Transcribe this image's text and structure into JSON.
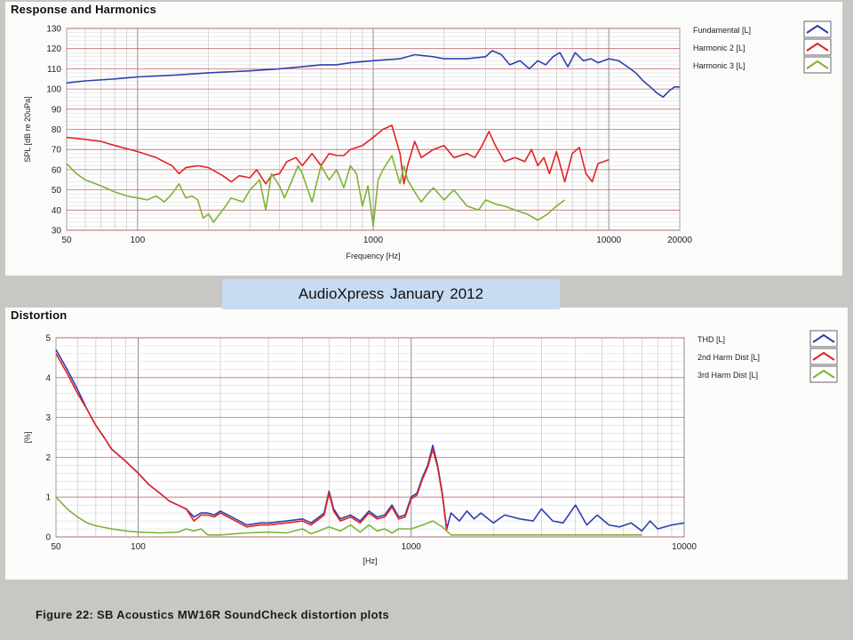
{
  "banner": "AudioXpress   January  2012",
  "caption": "Figure 22: SB Acoustics MW16R SoundCheck distortion plots",
  "chart_data": [
    {
      "type": "line",
      "title": "Response and Harmonics",
      "xlabel": "Frequency [Hz]",
      "ylabel": "SPL [dB re 20uPa]",
      "xscale": "log",
      "xlim": [
        50,
        20000
      ],
      "ylim": [
        30,
        130
      ],
      "xticks": [
        50,
        100,
        1000,
        10000,
        20000
      ],
      "xtick_labels": [
        "50",
        "100",
        "1000",
        "10000",
        "20000"
      ],
      "yticks": [
        30,
        40,
        50,
        60,
        70,
        80,
        90,
        100,
        110,
        120,
        130
      ],
      "ytick_labels": [
        "30",
        "40",
        "50",
        "60",
        "70",
        "80",
        "90",
        "100",
        "110",
        "120",
        "130"
      ],
      "grid": true,
      "legend_position": "right",
      "series": [
        {
          "name": "Fundamental [L]",
          "color": "#2e3fae",
          "x": [
            50,
            60,
            80,
            100,
            150,
            200,
            300,
            400,
            500,
            600,
            700,
            800,
            1000,
            1300,
            1500,
            1800,
            2000,
            2500,
            3000,
            3200,
            3500,
            3800,
            4200,
            4600,
            5000,
            5400,
            5800,
            6200,
            6700,
            7200,
            7800,
            8400,
            9000,
            10000,
            11000,
            12000,
            13000,
            14000,
            15000,
            16000,
            17000,
            18000,
            19000,
            20000
          ],
          "y": [
            103,
            104,
            105,
            106,
            107,
            108,
            109,
            110,
            111,
            112,
            112,
            113,
            114,
            115,
            117,
            116,
            115,
            115,
            116,
            119,
            117,
            112,
            114,
            110,
            114,
            112,
            116,
            118,
            111,
            118,
            114,
            115,
            113,
            115,
            114,
            111,
            108,
            104,
            101,
            98,
            96,
            99,
            101,
            101
          ]
        },
        {
          "name": "Harmonic 2 [L]",
          "color": "#e02424",
          "x": [
            50,
            60,
            70,
            80,
            100,
            120,
            140,
            150,
            160,
            180,
            200,
            230,
            250,
            270,
            300,
            320,
            350,
            370,
            400,
            430,
            470,
            500,
            550,
            600,
            650,
            700,
            750,
            800,
            900,
            1000,
            1100,
            1200,
            1300,
            1350,
            1400,
            1500,
            1600,
            1800,
            2000,
            2200,
            2500,
            2700,
            2900,
            3100,
            3300,
            3600,
            4000,
            4400,
            4700,
            5000,
            5300,
            5600,
            6000,
            6500,
            7000,
            7500,
            8000,
            8500,
            9000,
            10000
          ],
          "y": [
            76,
            75,
            74,
            72,
            69,
            66,
            62,
            58,
            61,
            62,
            61,
            57,
            54,
            57,
            56,
            60,
            53,
            57,
            58,
            64,
            66,
            62,
            68,
            62,
            68,
            67,
            67,
            70,
            72,
            76,
            80,
            82,
            68,
            53,
            62,
            74,
            66,
            70,
            72,
            66,
            68,
            66,
            72,
            79,
            72,
            64,
            66,
            64,
            70,
            62,
            66,
            58,
            69,
            54,
            68,
            71,
            58,
            54,
            63,
            65
          ]
        },
        {
          "name": "Harmonic 3 [L]",
          "color": "#7fb238",
          "x": [
            50,
            55,
            60,
            70,
            80,
            90,
            100,
            110,
            120,
            130,
            140,
            150,
            160,
            170,
            180,
            190,
            200,
            210,
            230,
            250,
            280,
            300,
            330,
            350,
            370,
            400,
            420,
            450,
            480,
            500,
            550,
            600,
            650,
            700,
            750,
            800,
            850,
            900,
            950,
            1000,
            1050,
            1100,
            1200,
            1300,
            1350,
            1400,
            1500,
            1600,
            1700,
            1800,
            2000,
            2200,
            2500,
            2800,
            3000,
            3300,
            3600,
            4000,
            4500,
            5000,
            5500,
            6000,
            6500
          ],
          "y": [
            63,
            58,
            55,
            52,
            49,
            47,
            46,
            45,
            47,
            44,
            48,
            53,
            46,
            47,
            45,
            36,
            38,
            34,
            40,
            46,
            44,
            50,
            55,
            40,
            58,
            52,
            46,
            54,
            62,
            58,
            44,
            62,
            55,
            60,
            51,
            62,
            58,
            42,
            52,
            32,
            55,
            60,
            67,
            53,
            62,
            55,
            49,
            44,
            48,
            51,
            45,
            50,
            42,
            40,
            45,
            43,
            42,
            40,
            38,
            35,
            38,
            42,
            45
          ]
        }
      ]
    },
    {
      "type": "line",
      "title": "Distortion",
      "xlabel": "[Hz]",
      "ylabel": "[%]",
      "xscale": "log",
      "xlim": [
        50,
        10000
      ],
      "ylim": [
        0,
        5
      ],
      "xticks": [
        50,
        100,
        1000,
        10000
      ],
      "xtick_labels": [
        "50",
        "100",
        "1000",
        "10000"
      ],
      "yticks": [
        0,
        1,
        2,
        3,
        4,
        5
      ],
      "ytick_labels": [
        "0",
        "1",
        "2",
        "3",
        "4",
        "5"
      ],
      "grid": true,
      "legend_position": "right",
      "series": [
        {
          "name": "THD [L]",
          "color": "#2e3fae",
          "x": [
            50,
            55,
            60,
            65,
            70,
            75,
            80,
            90,
            100,
            110,
            120,
            130,
            140,
            150,
            160,
            170,
            180,
            190,
            200,
            220,
            250,
            280,
            300,
            350,
            400,
            430,
            460,
            480,
            500,
            520,
            550,
            600,
            650,
            680,
            700,
            750,
            800,
            850,
            900,
            950,
            1000,
            1050,
            1100,
            1150,
            1200,
            1250,
            1300,
            1350,
            1400,
            1500,
            1600,
            1700,
            1800,
            2000,
            2200,
            2500,
            2800,
            3000,
            3300,
            3600,
            4000,
            4400,
            4800,
            5300,
            5800,
            6400,
            7000,
            7500,
            8000,
            9000,
            10000
          ],
          "y": [
            4.7,
            4.2,
            3.7,
            3.2,
            2.8,
            2.5,
            2.2,
            1.9,
            1.6,
            1.3,
            1.1,
            0.9,
            0.8,
            0.7,
            0.5,
            0.6,
            0.6,
            0.55,
            0.65,
            0.5,
            0.3,
            0.35,
            0.35,
            0.4,
            0.45,
            0.35,
            0.5,
            0.6,
            1.15,
            0.7,
            0.45,
            0.55,
            0.4,
            0.55,
            0.65,
            0.5,
            0.55,
            0.8,
            0.5,
            0.55,
            1.0,
            1.1,
            1.5,
            1.8,
            2.3,
            1.8,
            1.1,
            0.2,
            0.6,
            0.4,
            0.65,
            0.45,
            0.6,
            0.35,
            0.55,
            0.45,
            0.4,
            0.7,
            0.4,
            0.35,
            0.8,
            0.3,
            0.55,
            0.3,
            0.25,
            0.35,
            0.15,
            0.4,
            0.2,
            0.3,
            0.35
          ]
        },
        {
          "name": "2nd Harm Dist [L]",
          "color": "#e02424",
          "x": [
            50,
            55,
            60,
            65,
            70,
            75,
            80,
            90,
            100,
            110,
            120,
            130,
            140,
            150,
            160,
            170,
            180,
            190,
            200,
            220,
            250,
            280,
            300,
            350,
            400,
            430,
            460,
            480,
            500,
            520,
            550,
            600,
            650,
            680,
            700,
            750,
            800,
            850,
            900,
            950,
            1000,
            1050,
            1100,
            1150,
            1200,
            1250,
            1300,
            1350
          ],
          "y": [
            4.6,
            4.1,
            3.6,
            3.2,
            2.8,
            2.5,
            2.2,
            1.9,
            1.6,
            1.3,
            1.1,
            0.9,
            0.8,
            0.7,
            0.4,
            0.55,
            0.55,
            0.5,
            0.6,
            0.45,
            0.25,
            0.3,
            0.3,
            0.35,
            0.4,
            0.3,
            0.45,
            0.55,
            1.1,
            0.65,
            0.4,
            0.5,
            0.35,
            0.5,
            0.6,
            0.45,
            0.5,
            0.75,
            0.45,
            0.5,
            0.95,
            1.05,
            1.45,
            1.75,
            2.2,
            1.75,
            1.05,
            0.15
          ]
        },
        {
          "name": "3rd Harm Dist [L]",
          "color": "#7fb238",
          "x": [
            50,
            55,
            60,
            65,
            70,
            80,
            90,
            100,
            120,
            140,
            150,
            160,
            170,
            180,
            200,
            250,
            300,
            350,
            400,
            430,
            460,
            500,
            550,
            600,
            650,
            700,
            750,
            800,
            850,
            900,
            1000,
            1100,
            1200,
            1300,
            1400,
            1600,
            2000,
            3000,
            4000,
            5000,
            6000,
            7000
          ],
          "y": [
            1.0,
            0.7,
            0.5,
            0.35,
            0.28,
            0.2,
            0.15,
            0.12,
            0.1,
            0.12,
            0.2,
            0.15,
            0.2,
            0.05,
            0.05,
            0.1,
            0.12,
            0.1,
            0.2,
            0.08,
            0.15,
            0.25,
            0.15,
            0.3,
            0.12,
            0.3,
            0.15,
            0.2,
            0.1,
            0.2,
            0.2,
            0.3,
            0.4,
            0.25,
            0.05,
            0.05,
            0.05,
            0.05,
            0.05,
            0.05,
            0.05,
            0.05
          ]
        }
      ]
    }
  ]
}
